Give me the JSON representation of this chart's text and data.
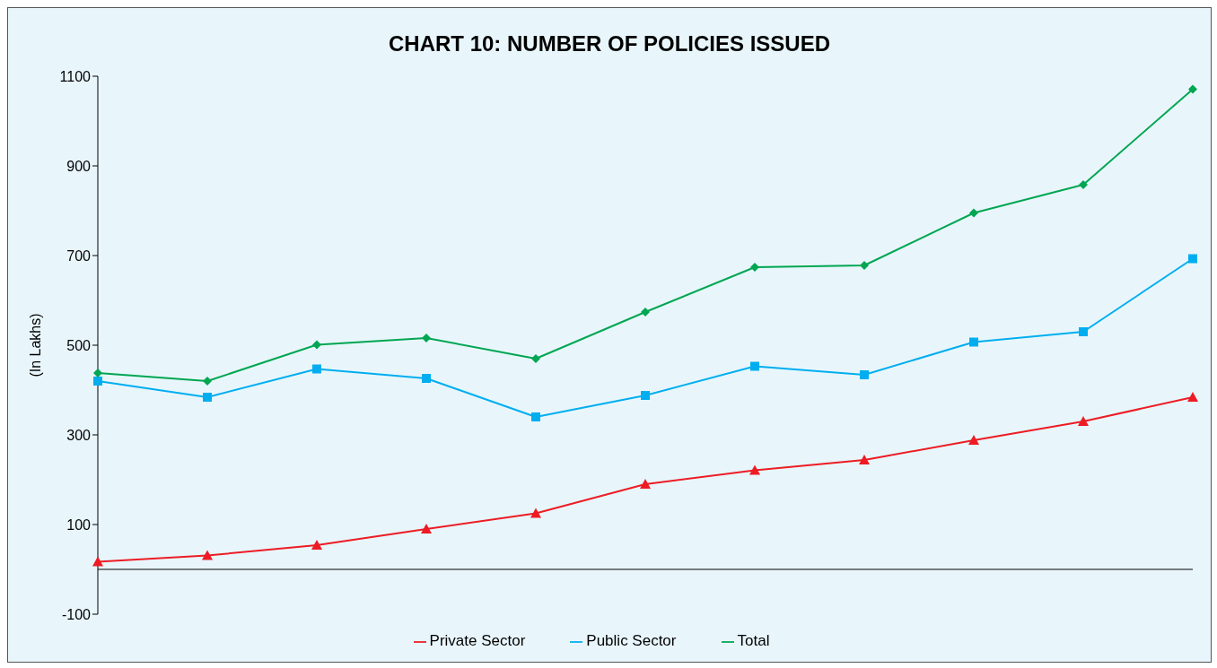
{
  "chart_data": {
    "type": "line",
    "title": "CHART 10: NUMBER OF POLICIES ISSUED",
    "ylabel": "(In Lakhs)",
    "categories": [
      null,
      null,
      null,
      null,
      null,
      null,
      null,
      null,
      null,
      null,
      null
    ],
    "series": [
      {
        "name": "Public Sector",
        "color": "#00aeef",
        "marker": "square",
        "values": [
          420,
          384,
          447,
          426,
          340,
          388,
          453,
          434,
          507,
          530,
          693
        ]
      },
      {
        "name": "Private Sector",
        "color": "#ed1c24",
        "marker": "triangle",
        "values": [
          17,
          31,
          54,
          90,
          125,
          190,
          221,
          244,
          288,
          330,
          384
        ]
      },
      {
        "name": "Total",
        "color": "#00a651",
        "marker": "diamond",
        "values": [
          438,
          420,
          501,
          516,
          470,
          574,
          674,
          678,
          795,
          858,
          1071
        ]
      }
    ],
    "ylim": [
      -100,
      1100
    ],
    "yticks": [
      -100,
      100,
      300,
      500,
      700,
      900,
      1100
    ],
    "grid": false,
    "legend": "bottom",
    "line_style": "solid"
  }
}
